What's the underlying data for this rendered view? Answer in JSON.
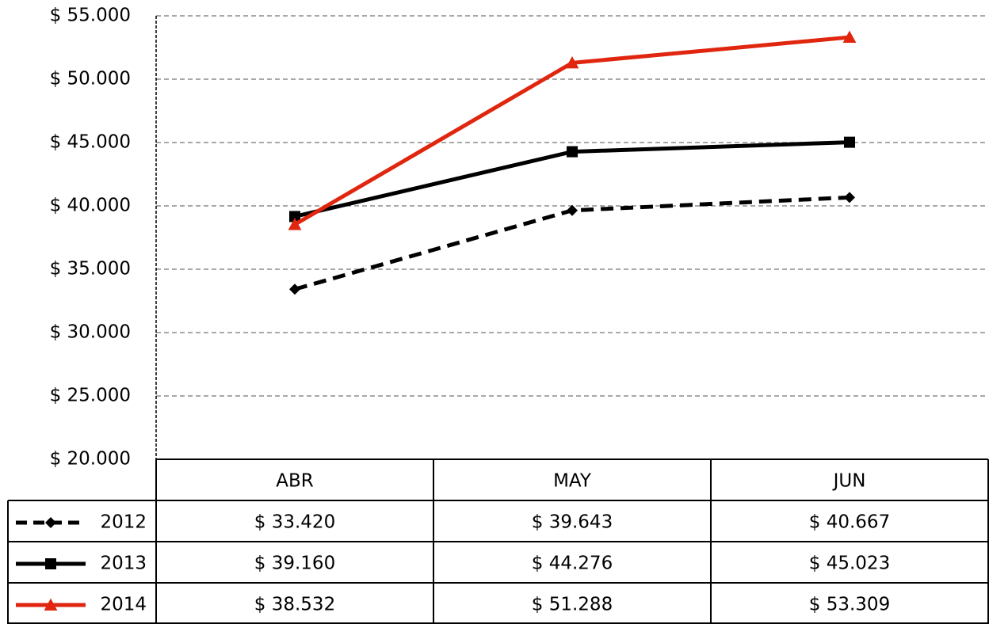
{
  "chart_data": {
    "type": "line",
    "categories": [
      "ABR",
      "MAY",
      "JUN"
    ],
    "series": [
      {
        "name": "2012",
        "color": "#000000",
        "dash": true,
        "marker": "diamond",
        "values": [
          33420,
          39643,
          40667
        ],
        "value_labels": [
          "$ 33.420",
          "$ 39.643",
          "$ 40.667"
        ]
      },
      {
        "name": "2013",
        "color": "#000000",
        "dash": false,
        "marker": "square",
        "values": [
          39160,
          44276,
          45023
        ],
        "value_labels": [
          "$ 39.160",
          "$ 44.276",
          "$ 45.023"
        ]
      },
      {
        "name": "2014",
        "color": "#e0260f",
        "dash": false,
        "marker": "triangle",
        "values": [
          38532,
          51288,
          53309
        ],
        "value_labels": [
          "$ 38.532",
          "$ 51.288",
          "$ 53.309"
        ]
      }
    ],
    "ylim": [
      20000,
      55000
    ],
    "yticks": [
      {
        "value": 20000,
        "label": "$ 20.000"
      },
      {
        "value": 25000,
        "label": "$ 25.000"
      },
      {
        "value": 30000,
        "label": "$ 30.000"
      },
      {
        "value": 35000,
        "label": "$ 35.000"
      },
      {
        "value": 40000,
        "label": "$ 40.000"
      },
      {
        "value": 45000,
        "label": "$ 45.000"
      },
      {
        "value": 50000,
        "label": "$ 50.000"
      },
      {
        "value": 55000,
        "label": "$ 55.000"
      }
    ],
    "grid": true
  }
}
